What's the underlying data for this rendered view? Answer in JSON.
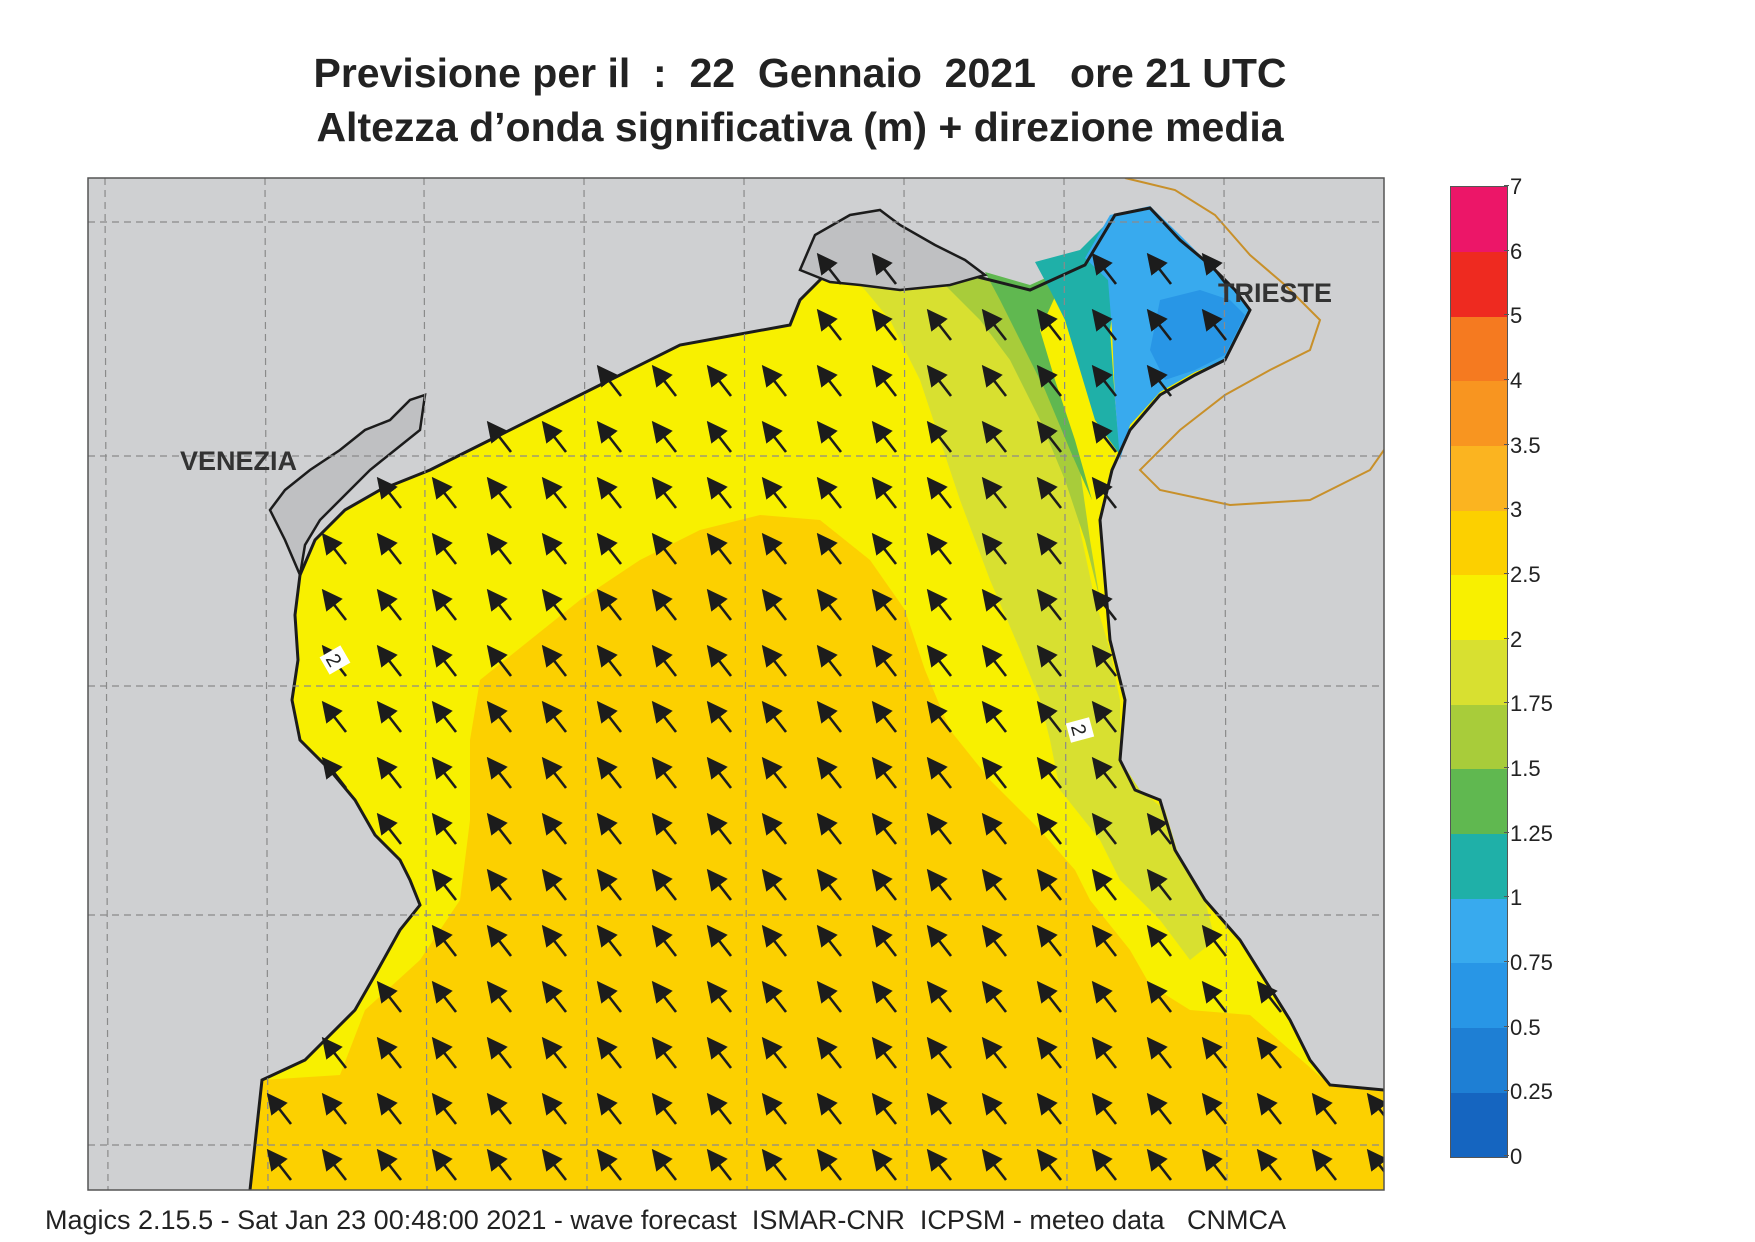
{
  "title_line1": "Previsione per il  :  22  Gennaio  2021   ore 21 UTC",
  "title_line2": "Altezza d’onda significativa (m) + direzione media",
  "footer": "Magics 2.15.5 - Sat Jan 23 00:48:00 2021 - wave forecast  ISMAR-CNR  ICPSM - meteo data   CNMCA",
  "cities": [
    {
      "name": "VENEZIA"
    },
    {
      "name": "TRIESTE"
    }
  ],
  "contour_labels": [
    "2",
    "2"
  ],
  "colorbar": {
    "ticks": [
      "0",
      "0.25",
      "0.5",
      "0.75",
      "1",
      "1.25",
      "1.5",
      "1.75",
      "2",
      "2.5",
      "3",
      "3.5",
      "4",
      "5",
      "6",
      "7"
    ],
    "colors": [
      "#1565c0",
      "#1e7fd4",
      "#2896e6",
      "#38aaee",
      "#1fb0a8",
      "#60b850",
      "#a8cc3a",
      "#d8e030",
      "#f8f000",
      "#fcd000",
      "#fbb420",
      "#f89520",
      "#f57a20",
      "#ee2a20",
      "#ec1668"
    ]
  },
  "colors": {
    "land": "#cfd0d2",
    "coast": "#1c1c1c",
    "border": "#c8902a",
    "grid": "#8a8a8a",
    "arrow": "#1c1c1c"
  },
  "wave_direction": "northwest"
}
